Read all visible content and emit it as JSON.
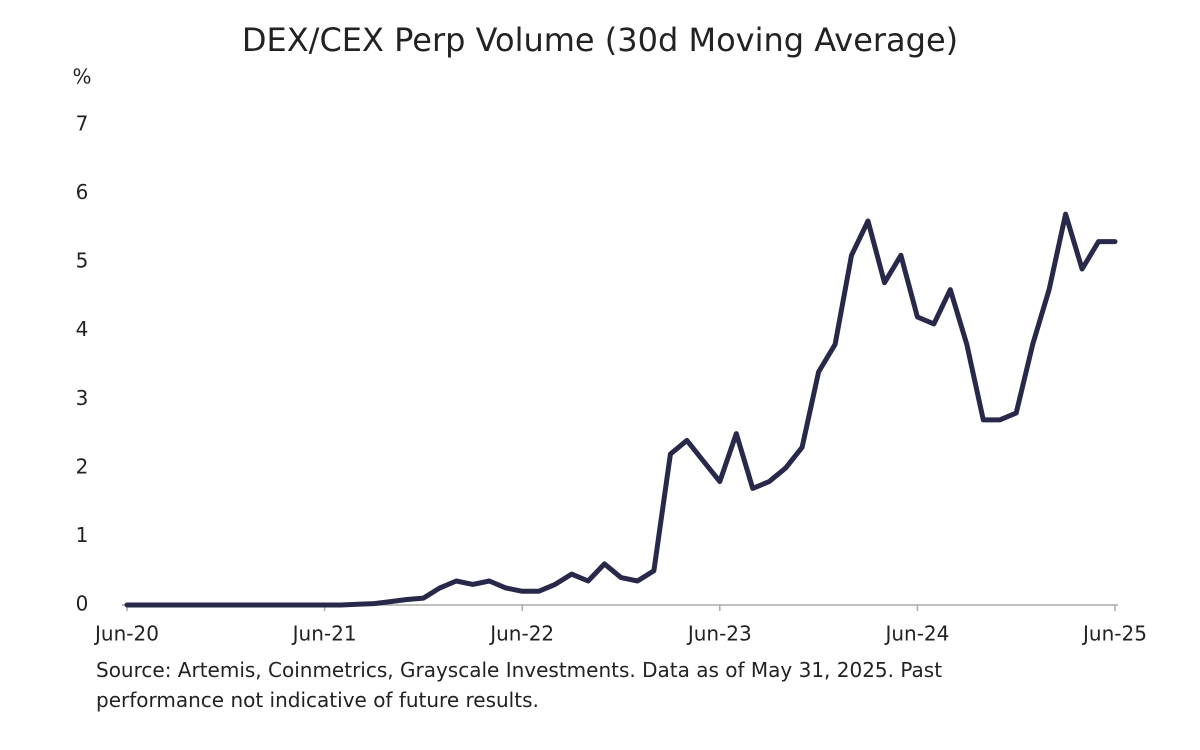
{
  "chart_data": {
    "type": "line",
    "title": "DEX/CEX Perp Volume (30d Moving Average)",
    "y_label": "%",
    "source": "Source: Artemis, Coinmetrics, Grayscale Investments. Data as of May 31, 2025. Past performance not indicative of future results.",
    "x": [
      "2020-06",
      "2020-07",
      "2020-08",
      "2020-09",
      "2020-10",
      "2020-11",
      "2020-12",
      "2021-01",
      "2021-02",
      "2021-03",
      "2021-04",
      "2021-05",
      "2021-06",
      "2021-07",
      "2021-08",
      "2021-09",
      "2021-10",
      "2021-11",
      "2021-12",
      "2022-01",
      "2022-02",
      "2022-03",
      "2022-04",
      "2022-05",
      "2022-06",
      "2022-07",
      "2022-08",
      "2022-09",
      "2022-10",
      "2022-11",
      "2022-12",
      "2023-01",
      "2023-02",
      "2023-03",
      "2023-04",
      "2023-05",
      "2023-06",
      "2023-07",
      "2023-08",
      "2023-09",
      "2023-10",
      "2023-11",
      "2023-12",
      "2024-01",
      "2024-02",
      "2024-03",
      "2024-04",
      "2024-05",
      "2024-06",
      "2024-07",
      "2024-08",
      "2024-09",
      "2024-10",
      "2024-11",
      "2024-12",
      "2025-01",
      "2025-02",
      "2025-03",
      "2025-04",
      "2025-05",
      "2025-06"
    ],
    "values": [
      0,
      0,
      0,
      0,
      0,
      0,
      0,
      0,
      0,
      0,
      0,
      0,
      0,
      0,
      0.01,
      0.02,
      0.05,
      0.08,
      0.1,
      0.25,
      0.35,
      0.3,
      0.35,
      0.25,
      0.2,
      0.2,
      0.3,
      0.45,
      0.35,
      0.6,
      0.4,
      0.35,
      0.5,
      2.2,
      2.4,
      2.1,
      1.8,
      2.5,
      1.7,
      1.8,
      2.0,
      2.3,
      3.4,
      3.8,
      5.1,
      5.6,
      4.7,
      5.1,
      4.2,
      4.1,
      4.6,
      3.8,
      2.7,
      2.7,
      2.8,
      3.8,
      4.6,
      5.7,
      4.9,
      5.3,
      5.3
    ],
    "color": "#28284a",
    "xlim": [
      "2020-06",
      "2025-06"
    ],
    "xticks": [
      {
        "value": "2020-06",
        "label": "Jun-20"
      },
      {
        "value": "2021-06",
        "label": "Jun-21"
      },
      {
        "value": "2022-06",
        "label": "Jun-22"
      },
      {
        "value": "2023-06",
        "label": "Jun-23"
      },
      {
        "value": "2024-06",
        "label": "Jun-24"
      },
      {
        "value": "2025-06",
        "label": "Jun-25"
      }
    ],
    "ylim": [
      0,
      7
    ],
    "yticks": [
      0,
      1,
      2,
      3,
      4,
      5,
      6,
      7
    ],
    "grid": false
  }
}
